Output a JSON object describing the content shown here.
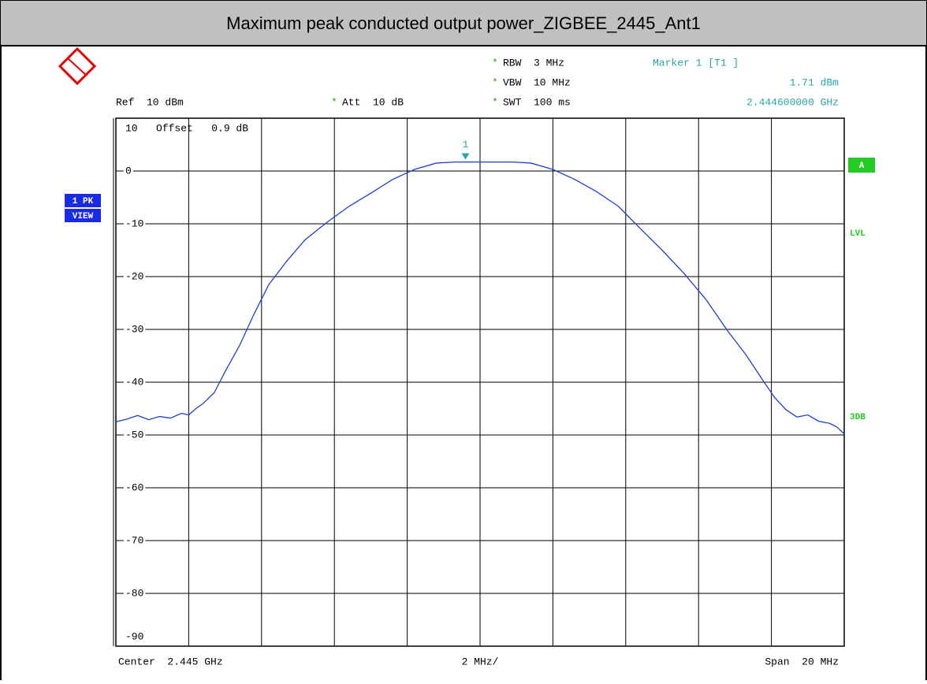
{
  "chart_data": {
    "type": "line",
    "title": "Maximum peak conducted output power_ZIGBEE_2445_Ant1",
    "ref": "Ref  10 dBm",
    "star": "*",
    "att": "Att  10 dB",
    "rbw": "RBW  3 MHz",
    "vbw": "VBW  10 MHz",
    "swt": "SWT  100 ms",
    "marker_title": "Marker 1 [T1 ]",
    "marker_level": "1.71 dBm",
    "marker_freq": "2.444600000 GHz",
    "offset": "Offset   0.9 dB",
    "trace_labels": [
      "1 PK",
      "VIEW"
    ],
    "side_labels": [
      "A",
      "LVL",
      "3DB"
    ],
    "center": "Center  2.445 GHz",
    "division": "2 MHz/",
    "span": "Span  20 MHz",
    "marker": {
      "label": "1",
      "x": 2444.6,
      "y": 1.71
    },
    "xlim": [
      2435,
      2455
    ],
    "xticks": [
      2435,
      2437,
      2439,
      2441,
      2443,
      2445,
      2447,
      2449,
      2451,
      2453,
      2455
    ],
    "ylim": [
      -90,
      10
    ],
    "yticks": [
      -90,
      -80,
      -70,
      -60,
      -50,
      -40,
      -30,
      -20,
      -10,
      0,
      10
    ],
    "grid": true,
    "x": [
      2435,
      2435.3,
      2435.6,
      2435.9,
      2436.2,
      2436.5,
      2436.8,
      2437.0,
      2437.2,
      2437.4,
      2437.7,
      2438.0,
      2438.4,
      2438.8,
      2439.2,
      2439.7,
      2440.2,
      2440.8,
      2441.4,
      2442.0,
      2442.6,
      2443.2,
      2443.8,
      2444.3,
      2444.6,
      2445.2,
      2445.9,
      2446.4,
      2447.0,
      2447.6,
      2448.2,
      2448.8,
      2449.4,
      2450.0,
      2450.6,
      2451.2,
      2451.8,
      2452.3,
      2452.8,
      2453.1,
      2453.4,
      2453.7,
      2454.0,
      2454.3,
      2454.6,
      2454.8,
      2455.0
    ],
    "series": [
      {
        "color": "#1f3fd6",
        "values": [
          -47.5,
          -47.0,
          -46.3,
          -47.1,
          -46.5,
          -46.8,
          -45.9,
          -46.2,
          -45.0,
          -44.0,
          -42.0,
          -38.0,
          -33.0,
          -27.0,
          -21.5,
          -17.0,
          -13.0,
          -9.7,
          -6.7,
          -4.2,
          -1.6,
          0.3,
          1.5,
          1.7,
          1.71,
          1.7,
          1.7,
          1.5,
          0.3,
          -1.6,
          -3.9,
          -6.7,
          -10.9,
          -15.0,
          -19.4,
          -24.3,
          -30.3,
          -34.8,
          -40.0,
          -43.0,
          -45.2,
          -46.6,
          -46.2,
          -47.4,
          -47.8,
          -48.5,
          -49.8
        ]
      }
    ]
  }
}
